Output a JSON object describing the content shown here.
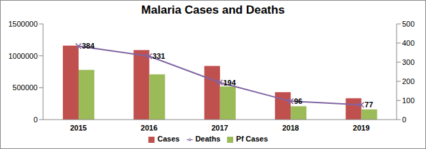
{
  "chart_data": {
    "type": "bar",
    "title": "Malaria Cases and Deaths",
    "categories": [
      "2015",
      "2016",
      "2017",
      "2018",
      "2019"
    ],
    "series": [
      {
        "name": "Cases",
        "type": "bar",
        "color": "#c0504d",
        "values": [
          1160000,
          1090000,
          840000,
          430000,
          335000
        ]
      },
      {
        "name": "Pf Cases",
        "type": "bar",
        "color": "#9bbb59",
        "values": [
          780000,
          710000,
          520000,
          210000,
          160000
        ]
      },
      {
        "name": "Deaths",
        "type": "line",
        "axis": "y2",
        "color": "#8064a2",
        "marker": "x",
        "line_style": "solid",
        "data_labels": true,
        "values": [
          384,
          331,
          194,
          96,
          77
        ]
      }
    ],
    "ylim": [
      0,
      1500000
    ],
    "yticks": [
      0,
      500000,
      1000000,
      1500000
    ],
    "y2lim": [
      0,
      500
    ],
    "y2ticks": [
      0,
      100,
      200,
      300,
      400,
      500
    ],
    "grid": false,
    "legend": "bottom"
  }
}
